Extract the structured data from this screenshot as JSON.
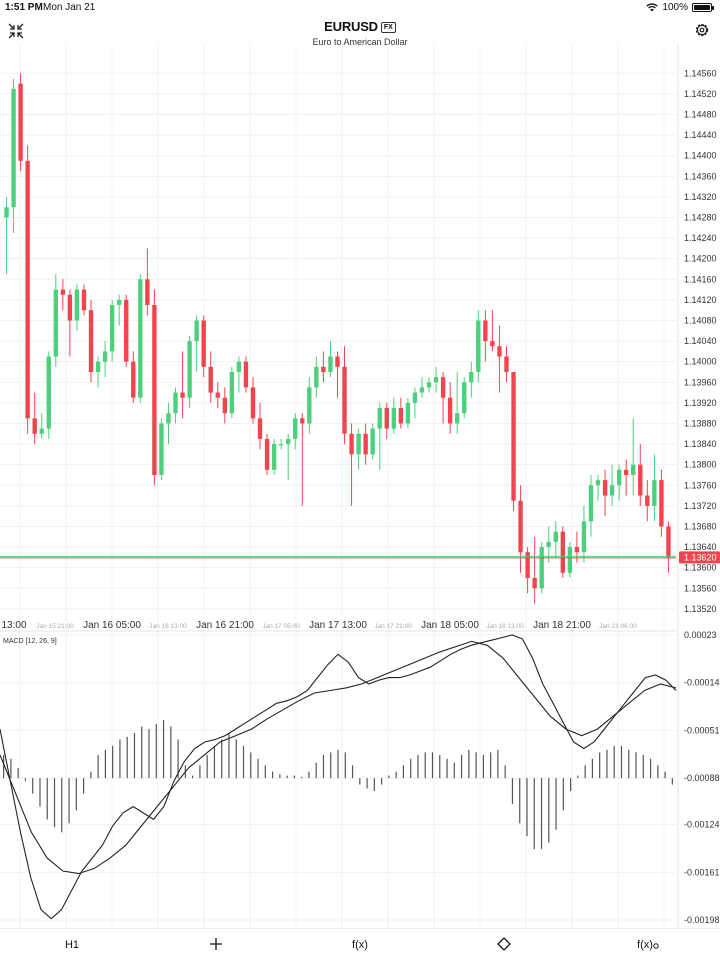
{
  "status_bar": {
    "time": "1:51 PM",
    "date": "Mon Jan 21",
    "battery": "100%"
  },
  "header": {
    "symbol": "EURUSD",
    "badge": "FX",
    "subtitle": "Euro to American Dollar"
  },
  "icons": {
    "collapse": "collapse-icon",
    "settings": "gear-icon",
    "draw": "diamond-icon",
    "add": "plus-icon"
  },
  "colors": {
    "up": "#4cd07d",
    "down": "#f0444f",
    "price_line_up": "#4cd07d",
    "price_line_down": "#f0444f",
    "price_tag": "#f0444f"
  },
  "chart_data": [
    {
      "type": "candlestick",
      "title": "EURUSD",
      "ylim": [
        1.1351,
        1.1458
      ],
      "y_ticks": [
        "1.14560",
        "1.14520",
        "1.14480",
        "1.14440",
        "1.14400",
        "1.14360",
        "1.14320",
        "1.14280",
        "1.14240",
        "1.14200",
        "1.14160",
        "1.14120",
        "1.14080",
        "1.14040",
        "1.14000",
        "1.13960",
        "1.13920",
        "1.13880",
        "1.13840",
        "1.13800",
        "1.13760",
        "1.13720",
        "1.13680",
        "1.13640",
        "1.13600",
        "1.13560",
        "1.13520"
      ],
      "x_labels_major": [
        "13:00",
        "Jan 16 05:00",
        "Jan 16 21:00",
        "Jan 17 13:00",
        "Jan 18 05:00",
        "Jan 18 21:00"
      ],
      "x_labels_minor": [
        "Jan 15 21:00",
        "Jan 16 13:00",
        "Jan 17 05:00",
        "Jan 17 21:00",
        "Jan 18 13:00",
        "Jan 21 06:00"
      ],
      "current_price": "1.13620",
      "candles": [
        {
          "o": 1.1428,
          "h": 1.1432,
          "l": 1.1417,
          "c": 1.143
        },
        {
          "o": 1.143,
          "h": 1.1455,
          "l": 1.1425,
          "c": 1.1453
        },
        {
          "o": 1.1454,
          "h": 1.1456,
          "l": 1.1437,
          "c": 1.1439
        },
        {
          "o": 1.1439,
          "h": 1.1442,
          "l": 1.1386,
          "c": 1.1389
        },
        {
          "o": 1.1389,
          "h": 1.1394,
          "l": 1.1384,
          "c": 1.1386
        },
        {
          "o": 1.1386,
          "h": 1.139,
          "l": 1.1385,
          "c": 1.1387
        },
        {
          "o": 1.1387,
          "h": 1.1402,
          "l": 1.1385,
          "c": 1.1401
        },
        {
          "o": 1.1401,
          "h": 1.1417,
          "l": 1.1399,
          "c": 1.1414
        },
        {
          "o": 1.1414,
          "h": 1.1416,
          "l": 1.141,
          "c": 1.1413
        },
        {
          "o": 1.1413,
          "h": 1.1414,
          "l": 1.1401,
          "c": 1.1408
        },
        {
          "o": 1.1408,
          "h": 1.1415,
          "l": 1.1406,
          "c": 1.1414
        },
        {
          "o": 1.1414,
          "h": 1.1415,
          "l": 1.1409,
          "c": 1.141
        },
        {
          "o": 1.141,
          "h": 1.1412,
          "l": 1.1396,
          "c": 1.1398
        },
        {
          "o": 1.1398,
          "h": 1.1401,
          "l": 1.1395,
          "c": 1.14
        },
        {
          "o": 1.14,
          "h": 1.1404,
          "l": 1.1397,
          "c": 1.1402
        },
        {
          "o": 1.1402,
          "h": 1.1412,
          "l": 1.14,
          "c": 1.1411
        },
        {
          "o": 1.1411,
          "h": 1.1413,
          "l": 1.1407,
          "c": 1.1412
        },
        {
          "o": 1.1412,
          "h": 1.1413,
          "l": 1.1399,
          "c": 1.14
        },
        {
          "o": 1.14,
          "h": 1.1402,
          "l": 1.1392,
          "c": 1.1393
        },
        {
          "o": 1.1393,
          "h": 1.1417,
          "l": 1.1392,
          "c": 1.1416
        },
        {
          "o": 1.1416,
          "h": 1.1422,
          "l": 1.1409,
          "c": 1.1411
        },
        {
          "o": 1.1411,
          "h": 1.1414,
          "l": 1.1376,
          "c": 1.1378
        },
        {
          "o": 1.1378,
          "h": 1.1389,
          "l": 1.1377,
          "c": 1.1388
        },
        {
          "o": 1.1388,
          "h": 1.1392,
          "l": 1.1384,
          "c": 1.139
        },
        {
          "o": 1.139,
          "h": 1.1395,
          "l": 1.1388,
          "c": 1.1394
        },
        {
          "o": 1.1394,
          "h": 1.1402,
          "l": 1.1389,
          "c": 1.1393
        },
        {
          "o": 1.1393,
          "h": 1.1405,
          "l": 1.1391,
          "c": 1.1404
        },
        {
          "o": 1.1404,
          "h": 1.1409,
          "l": 1.1398,
          "c": 1.1408
        },
        {
          "o": 1.1408,
          "h": 1.1409,
          "l": 1.1397,
          "c": 1.1399
        },
        {
          "o": 1.1399,
          "h": 1.1402,
          "l": 1.1392,
          "c": 1.1394
        },
        {
          "o": 1.1394,
          "h": 1.1396,
          "l": 1.1391,
          "c": 1.1393
        },
        {
          "o": 1.1393,
          "h": 1.1395,
          "l": 1.1388,
          "c": 1.139
        },
        {
          "o": 1.139,
          "h": 1.1399,
          "l": 1.1389,
          "c": 1.1398
        },
        {
          "o": 1.1398,
          "h": 1.1401,
          "l": 1.1394,
          "c": 1.14
        },
        {
          "o": 1.14,
          "h": 1.1401,
          "l": 1.1394,
          "c": 1.1395
        },
        {
          "o": 1.1395,
          "h": 1.1397,
          "l": 1.1388,
          "c": 1.1389
        },
        {
          "o": 1.1389,
          "h": 1.1392,
          "l": 1.1383,
          "c": 1.1385
        },
        {
          "o": 1.1385,
          "h": 1.1386,
          "l": 1.1378,
          "c": 1.1379
        },
        {
          "o": 1.1379,
          "h": 1.1385,
          "l": 1.1378,
          "c": 1.1384
        },
        {
          "o": 1.1384,
          "h": 1.1385,
          "l": 1.1383,
          "c": 1.1384
        },
        {
          "o": 1.1384,
          "h": 1.1386,
          "l": 1.1377,
          "c": 1.1385
        },
        {
          "o": 1.1385,
          "h": 1.139,
          "l": 1.1383,
          "c": 1.1389
        },
        {
          "o": 1.1389,
          "h": 1.139,
          "l": 1.1372,
          "c": 1.1388
        },
        {
          "o": 1.1388,
          "h": 1.1397,
          "l": 1.1386,
          "c": 1.1395
        },
        {
          "o": 1.1395,
          "h": 1.1401,
          "l": 1.1393,
          "c": 1.1399
        },
        {
          "o": 1.1399,
          "h": 1.1402,
          "l": 1.1396,
          "c": 1.1398
        },
        {
          "o": 1.1398,
          "h": 1.1404,
          "l": 1.1397,
          "c": 1.1401
        },
        {
          "o": 1.1401,
          "h": 1.1402,
          "l": 1.1393,
          "c": 1.1399
        },
        {
          "o": 1.1399,
          "h": 1.1403,
          "l": 1.1384,
          "c": 1.1386
        },
        {
          "o": 1.1386,
          "h": 1.1388,
          "l": 1.1372,
          "c": 1.1382
        },
        {
          "o": 1.1382,
          "h": 1.1387,
          "l": 1.1379,
          "c": 1.1386
        },
        {
          "o": 1.1386,
          "h": 1.1388,
          "l": 1.138,
          "c": 1.1382
        },
        {
          "o": 1.1382,
          "h": 1.1388,
          "l": 1.1381,
          "c": 1.1387
        },
        {
          "o": 1.1387,
          "h": 1.1392,
          "l": 1.1379,
          "c": 1.1391
        },
        {
          "o": 1.1391,
          "h": 1.1392,
          "l": 1.1385,
          "c": 1.1387
        },
        {
          "o": 1.1387,
          "h": 1.1393,
          "l": 1.1386,
          "c": 1.1391
        },
        {
          "o": 1.1391,
          "h": 1.1393,
          "l": 1.1387,
          "c": 1.1388
        },
        {
          "o": 1.1388,
          "h": 1.1393,
          "l": 1.1387,
          "c": 1.1392
        },
        {
          "o": 1.1392,
          "h": 1.1395,
          "l": 1.1389,
          "c": 1.1394
        },
        {
          "o": 1.1394,
          "h": 1.1397,
          "l": 1.1393,
          "c": 1.1395
        },
        {
          "o": 1.1395,
          "h": 1.1397,
          "l": 1.1394,
          "c": 1.1396
        },
        {
          "o": 1.1396,
          "h": 1.1399,
          "l": 1.1394,
          "c": 1.1397
        },
        {
          "o": 1.1397,
          "h": 1.1398,
          "l": 1.1388,
          "c": 1.1393
        },
        {
          "o": 1.1393,
          "h": 1.1396,
          "l": 1.1386,
          "c": 1.1388
        },
        {
          "o": 1.1388,
          "h": 1.1398,
          "l": 1.1386,
          "c": 1.139
        },
        {
          "o": 1.139,
          "h": 1.1397,
          "l": 1.1389,
          "c": 1.1396
        },
        {
          "o": 1.1396,
          "h": 1.14,
          "l": 1.1393,
          "c": 1.1398
        },
        {
          "o": 1.1398,
          "h": 1.141,
          "l": 1.1396,
          "c": 1.1408
        },
        {
          "o": 1.1408,
          "h": 1.141,
          "l": 1.14,
          "c": 1.1404
        },
        {
          "o": 1.1404,
          "h": 1.141,
          "l": 1.1402,
          "c": 1.1403
        },
        {
          "o": 1.1403,
          "h": 1.1407,
          "l": 1.1394,
          "c": 1.1401
        },
        {
          "o": 1.1401,
          "h": 1.1403,
          "l": 1.1396,
          "c": 1.1398
        },
        {
          "o": 1.1398,
          "h": 1.1398,
          "l": 1.1371,
          "c": 1.1373
        },
        {
          "o": 1.1373,
          "h": 1.1376,
          "l": 1.1359,
          "c": 1.1363
        },
        {
          "o": 1.1363,
          "h": 1.1364,
          "l": 1.1355,
          "c": 1.1358
        },
        {
          "o": 1.1358,
          "h": 1.1366,
          "l": 1.1353,
          "c": 1.1356
        },
        {
          "o": 1.1356,
          "h": 1.1365,
          "l": 1.1355,
          "c": 1.1364
        },
        {
          "o": 1.1364,
          "h": 1.1368,
          "l": 1.1361,
          "c": 1.1365
        },
        {
          "o": 1.1365,
          "h": 1.1369,
          "l": 1.1362,
          "c": 1.1367
        },
        {
          "o": 1.1367,
          "h": 1.1368,
          "l": 1.1358,
          "c": 1.1359
        },
        {
          "o": 1.1359,
          "h": 1.1365,
          "l": 1.1358,
          "c": 1.1364
        },
        {
          "o": 1.1364,
          "h": 1.1367,
          "l": 1.1361,
          "c": 1.1363
        },
        {
          "o": 1.1363,
          "h": 1.1372,
          "l": 1.1361,
          "c": 1.1369
        },
        {
          "o": 1.1369,
          "h": 1.1378,
          "l": 1.1366,
          "c": 1.1376
        },
        {
          "o": 1.1376,
          "h": 1.1378,
          "l": 1.1373,
          "c": 1.1377
        },
        {
          "o": 1.1377,
          "h": 1.1379,
          "l": 1.137,
          "c": 1.1374
        },
        {
          "o": 1.1374,
          "h": 1.138,
          "l": 1.1372,
          "c": 1.1376
        },
        {
          "o": 1.1376,
          "h": 1.138,
          "l": 1.1373,
          "c": 1.1379
        },
        {
          "o": 1.1379,
          "h": 1.1381,
          "l": 1.1374,
          "c": 1.1378
        },
        {
          "o": 1.1378,
          "h": 1.1389,
          "l": 1.1374,
          "c": 1.138
        },
        {
          "o": 1.138,
          "h": 1.1384,
          "l": 1.1372,
          "c": 1.1374
        },
        {
          "o": 1.1374,
          "h": 1.1377,
          "l": 1.1369,
          "c": 1.1372
        },
        {
          "o": 1.1372,
          "h": 1.1382,
          "l": 1.1369,
          "c": 1.1377
        },
        {
          "o": 1.1377,
          "h": 1.1379,
          "l": 1.1366,
          "c": 1.1368
        },
        {
          "o": 1.1368,
          "h": 1.1369,
          "l": 1.1359,
          "c": 1.1362
        }
      ]
    },
    {
      "type": "line",
      "title": "MACD [12, 26, 9]",
      "ylim": [
        -0.00198,
        0.00023
      ],
      "y_ticks": [
        "0.00023",
        "-0.00014",
        "-0.00051",
        "-0.00088",
        "-0.00124",
        "-0.00161",
        "-0.00198"
      ],
      "histogram": [
        0.00018,
        0.00015,
        8e-05,
        -2e-05,
        -0.00012,
        -0.00022,
        -0.00032,
        -0.00038,
        -0.00042,
        -0.00035,
        -0.00025,
        -0.00012,
        5e-05,
        0.00018,
        0.00022,
        0.00025,
        0.0003,
        0.00032,
        0.00035,
        0.0004,
        0.00038,
        0.00042,
        0.00045,
        0.0004,
        0.0003,
        0.0001,
        2e-05,
        0.0001,
        0.00018,
        0.00025,
        0.0003,
        0.00035,
        0.0003,
        0.00025,
        0.0002,
        0.00015,
        0.0001,
        5e-05,
        3e-05,
        2e-05,
        2e-05,
        1e-05,
        5e-05,
        0.00012,
        0.00018,
        0.0002,
        0.00022,
        0.0002,
        0.0001,
        -5e-05,
        -8e-05,
        -0.0001,
        -5e-05,
        2e-05,
        5e-05,
        0.0001,
        0.00015,
        0.00018,
        0.0002,
        0.0002,
        0.00018,
        0.00015,
        0.00012,
        0.00018,
        0.00022,
        0.0002,
        0.00018,
        0.0002,
        0.00022,
        0.0001,
        -0.0002,
        -0.00035,
        -0.00045,
        -0.00055,
        -0.00055,
        -0.0005,
        -0.0004,
        -0.00025,
        -0.0001,
        2e-05,
        0.0001,
        0.00015,
        0.0002,
        0.00022,
        0.00025,
        0.00025,
        0.00022,
        0.0002,
        0.00018,
        0.00015,
        0.0001,
        5e-05,
        -5e-05
      ],
      "macd": [
        -0.0005,
        -0.0009,
        -0.0013,
        -0.00165,
        -0.0019,
        -0.00197,
        -0.0019,
        -0.00175,
        -0.0016,
        -0.0015,
        -0.0014,
        -0.00125,
        -0.00115,
        -0.0011,
        -0.00115,
        -0.0012,
        -0.0011,
        -0.0009,
        -0.00075,
        -0.00065,
        -0.0006,
        -0.00058,
        -0.00055,
        -0.0005,
        -0.00045,
        -0.0004,
        -0.00035,
        -0.0003,
        -0.00028,
        -0.00025,
        -0.0002,
        -0.0001,
        0.0,
        8e-05,
        2e-05,
        -0.0001,
        -0.00015,
        -0.00012,
        -0.0001,
        -0.0001,
        -8e-05,
        -5e-05,
        -2e-05,
        3e-05,
        8e-05,
        0.00012,
        0.00015,
        0.00017,
        0.00019,
        0.00021,
        0.00023,
        0.0002,
        5e-05,
        -0.00015,
        -0.0003,
        -0.00045,
        -0.0006,
        -0.00065,
        -0.0006,
        -0.0005,
        -0.0004,
        -0.0003,
        -0.0002,
        -0.0001,
        -8e-05,
        -0.00012,
        -0.0002
      ],
      "signal": [
        -0.0007,
        -0.001,
        -0.0013,
        -0.0015,
        -0.0016,
        -0.00162,
        -0.00158,
        -0.0015,
        -0.0014,
        -0.00125,
        -0.0011,
        -0.00095,
        -0.0008,
        -0.0007,
        -0.0006,
        -0.00055,
        -0.0005,
        -0.00042,
        -0.00035,
        -0.00028,
        -0.00022,
        -0.0002,
        -0.00018,
        -0.00015,
        -0.0001,
        -5e-05,
        0.0,
        5e-05,
        0.0001,
        0.00014,
        0.00018,
        0.00015,
        5e-05,
        -0.0001,
        -0.00025,
        -0.0004,
        -0.0005,
        -0.00055,
        -0.0005,
        -0.0004,
        -0.0003,
        -0.0002,
        -0.00015,
        -0.00018
      ]
    }
  ],
  "toolbar": {
    "timeframe": "H1",
    "add": "+",
    "functions": "f(x)",
    "draw": "diamond",
    "settings": "f(x)"
  }
}
